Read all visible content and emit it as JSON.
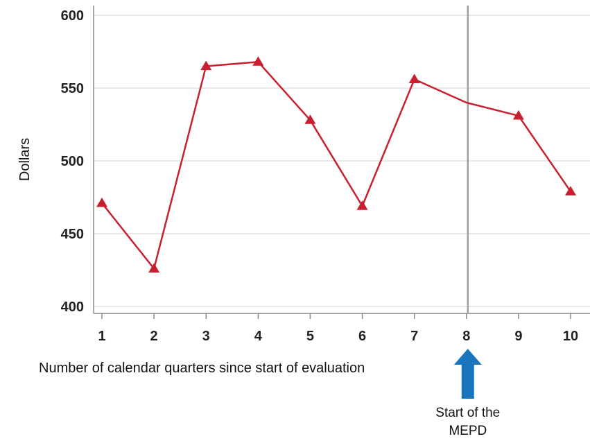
{
  "chart_data": {
    "type": "line",
    "x": [
      1,
      2,
      3,
      4,
      5,
      6,
      7,
      8,
      9,
      10
    ],
    "series": [
      {
        "values": [
          471,
          426,
          565,
          568,
          528,
          469,
          556,
          540,
          531,
          479
        ],
        "markers": [
          true,
          true,
          true,
          true,
          true,
          true,
          true,
          false,
          true,
          true
        ],
        "color": "#c8202f"
      }
    ],
    "xlabel": "Number of calendar quarters since start of evaluation",
    "ylabel": "Dollars",
    "x_ticks": [
      1,
      2,
      3,
      4,
      5,
      6,
      7,
      8,
      9,
      10
    ],
    "y_ticks": [
      400,
      450,
      500,
      550,
      600
    ],
    "ylim": [
      395,
      605
    ],
    "xlim": [
      1,
      10
    ],
    "grid": "horizontal",
    "annotation": {
      "line1": "Start of the",
      "line2": "MEPD",
      "x": 8,
      "arrow_color": "#1a75bc",
      "vline_color": "#9e9e9e"
    }
  }
}
